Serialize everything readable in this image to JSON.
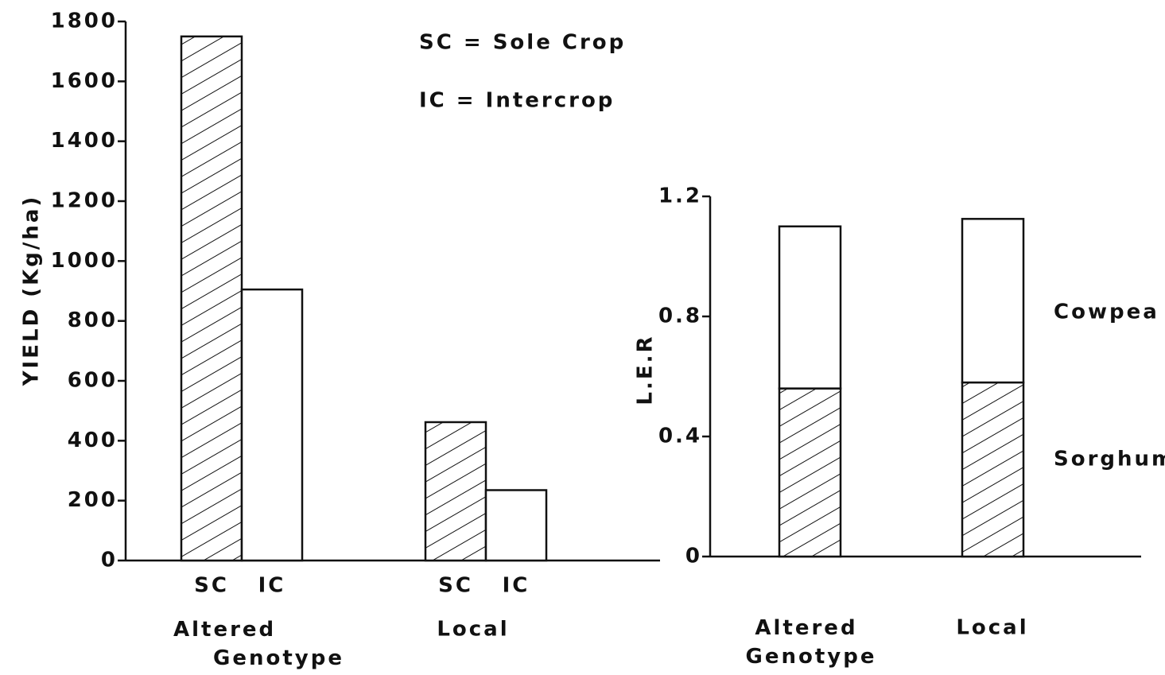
{
  "chart_data": [
    {
      "type": "grouped-bar",
      "y_label": "YIELD (Kg/ha)",
      "annotations": [
        "SC = Sole Crop",
        "IC = Intercrop"
      ],
      "categories": [
        "Altered Genotype",
        "Local"
      ],
      "series": [
        {
          "name": "SC",
          "hatch": true,
          "values": [
            1750,
            462
          ]
        },
        {
          "name": "IC",
          "hatch": false,
          "values": [
            905,
            235
          ]
        }
      ],
      "ylim": [
        0,
        1800
      ],
      "yticks": [
        0,
        200,
        400,
        600,
        800,
        1000,
        1200,
        1400,
        1600,
        1800
      ]
    },
    {
      "type": "stacked-bar",
      "y_label": "L.E.R",
      "categories": [
        "Altered Genotype",
        "Local"
      ],
      "series": [
        {
          "name": "Sorghum",
          "hatch": true,
          "values": [
            0.56,
            0.58
          ]
        },
        {
          "name": "Cowpea",
          "hatch": false,
          "values": [
            0.54,
            0.545
          ]
        }
      ],
      "ylim": [
        0,
        1.2
      ],
      "yticks": [
        0,
        0.4,
        0.8,
        1.2
      ]
    }
  ]
}
